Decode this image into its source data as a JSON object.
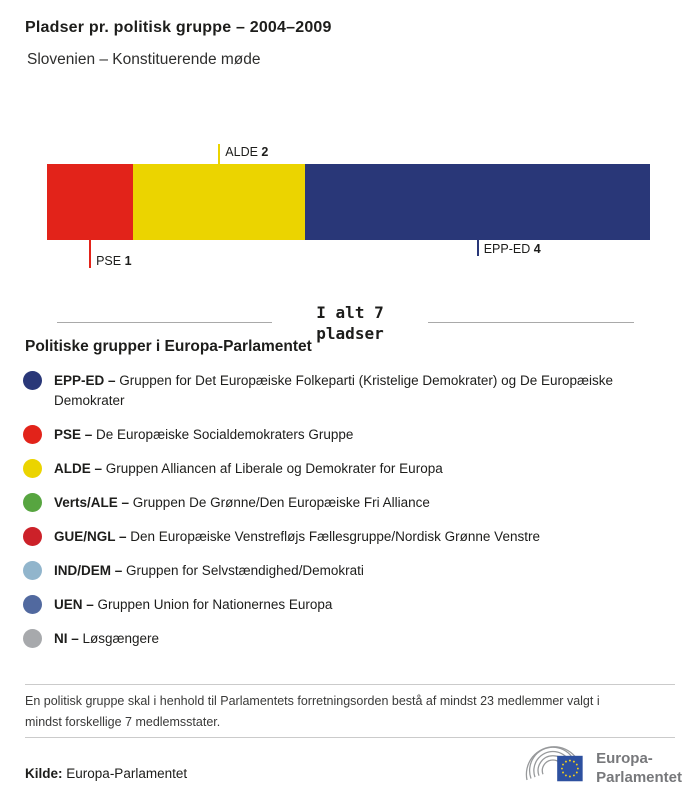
{
  "chart_data": {
    "type": "bar",
    "variant": "horizontal-stacked-single-bar",
    "title": "Pladser pr. politisk gruppe – 2004–2009",
    "subtitle": "Slovenien – Konstituerende møde",
    "total_seats": 7,
    "total_label_line1": "I alt 7",
    "total_label_line2": "pladser",
    "series": [
      {
        "name": "PSE",
        "value": 1,
        "color": "#e2231a",
        "label_position": "below",
        "tick_length": 28
      },
      {
        "name": "ALDE",
        "value": 2,
        "color": "#ebd400",
        "label_position": "above",
        "tick_length": 20
      },
      {
        "name": "EPP-ED",
        "value": 4,
        "color": "#293778",
        "label_position": "below",
        "tick_length": 16
      }
    ]
  },
  "legend": {
    "heading": "Politiske grupper i Europa-Parlamentet",
    "items": [
      {
        "code": "EPP-ED –",
        "desc": "Gruppen for Det Europæiske Folkeparti (Kristelige Demokrater) og De Europæiske Demokrater",
        "color": "#293778"
      },
      {
        "code": "PSE –",
        "desc": "De Europæiske Socialdemokraters Gruppe",
        "color": "#e2231a"
      },
      {
        "code": "ALDE –",
        "desc": "Gruppen Alliancen af Liberale og Demokrater for Europa",
        "color": "#ebd400"
      },
      {
        "code": "Verts/ALE –",
        "desc": "Gruppen De Grønne/Den Europæiske Fri Alliance",
        "color": "#57a540"
      },
      {
        "code": "GUE/NGL –",
        "desc": "Den Europæiske Venstrefløjs Fællesgruppe/Nordisk Grønne Venstre",
        "color": "#cc2129"
      },
      {
        "code": "IND/DEM –",
        "desc": "Gruppen for Selvstændighed/Demokrati",
        "color": "#91b5cc"
      },
      {
        "code": "UEN –",
        "desc": "Gruppen Union for Nationernes Europa",
        "color": "#51699f"
      },
      {
        "code": "NI –",
        "desc": "Løsgængere",
        "color": "#a7a9ac"
      }
    ]
  },
  "footnote": "En politisk gruppe skal i henhold til Parlamentets forretningsorden bestå af mindst 23 medlemmer valgt i mindst forskellige 7 medlemsstater.",
  "source": {
    "label": "Kilde:",
    "value": "Europa-Parlamentet"
  },
  "logo": {
    "line1": "Europa-",
    "line2": "Parlamentet",
    "flag_blue": "#2d509f",
    "star_yellow": "#f7d117",
    "arc_gray": "#97999b",
    "text_gray": "#77787b"
  }
}
